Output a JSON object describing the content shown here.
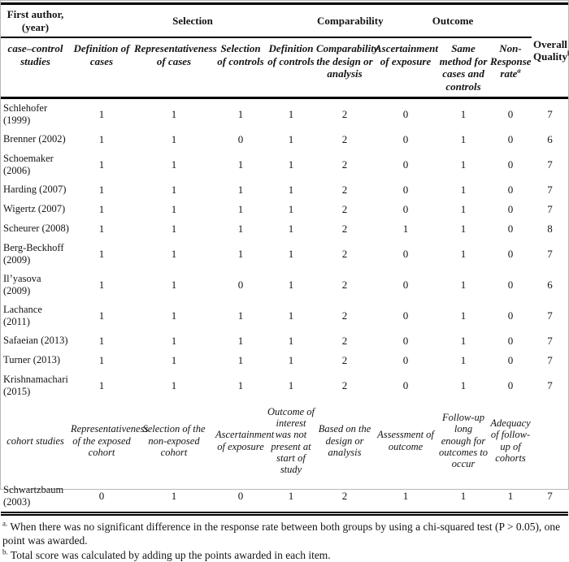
{
  "table": {
    "group_headers": {
      "first_author": "First author, (year)",
      "selection": "Selection",
      "comparability": "Comparability",
      "outcome": "Outcome",
      "overall_quality": "Overall Quality",
      "overall_quality_sup": "b"
    },
    "case_control": {
      "stub_label": "case–control studies",
      "columns": [
        "Definition of cases",
        "Representativeness of cases",
        "Selection of controls",
        "Definition of controls",
        "Comparability the design or analysis",
        "Ascertainment of exposure",
        "Same method for cases and controls",
        "Non-Response rate"
      ],
      "non_response_sup": "a",
      "rows": [
        {
          "author": "Schlehofer (1999)",
          "values": [
            "1",
            "1",
            "1",
            "1",
            "2",
            "0",
            "1",
            "0",
            "7"
          ]
        },
        {
          "author": "Brenner (2002)",
          "values": [
            "1",
            "1",
            "0",
            "1",
            "2",
            "0",
            "1",
            "0",
            "6"
          ]
        },
        {
          "author": "Schoemaker (2006)",
          "values": [
            "1",
            "1",
            "1",
            "1",
            "2",
            "0",
            "1",
            "0",
            "7"
          ]
        },
        {
          "author": "Harding (2007)",
          "values": [
            "1",
            "1",
            "1",
            "1",
            "2",
            "0",
            "1",
            "0",
            "7"
          ]
        },
        {
          "author": "Wigertz (2007)",
          "values": [
            "1",
            "1",
            "1",
            "1",
            "2",
            "0",
            "1",
            "0",
            "7"
          ]
        },
        {
          "author": "Scheurer (2008)",
          "values": [
            "1",
            "1",
            "1",
            "1",
            "2",
            "1",
            "1",
            "0",
            "8"
          ]
        },
        {
          "author": "Berg-Beckhoff (2009)",
          "values": [
            "1",
            "1",
            "1",
            "1",
            "2",
            "0",
            "1",
            "0",
            "7"
          ]
        },
        {
          "author": "Il’yasova (2009)",
          "values": [
            "1",
            "1",
            "0",
            "1",
            "2",
            "0",
            "1",
            "0",
            "6"
          ]
        },
        {
          "author": "Lachance (2011)",
          "values": [
            "1",
            "1",
            "1",
            "1",
            "2",
            "0",
            "1",
            "0",
            "7"
          ]
        },
        {
          "author": "Safaeian (2013)",
          "values": [
            "1",
            "1",
            "1",
            "1",
            "2",
            "0",
            "1",
            "0",
            "7"
          ]
        },
        {
          "author": "Turner (2013)",
          "values": [
            "1",
            "1",
            "1",
            "1",
            "2",
            "0",
            "1",
            "0",
            "7"
          ]
        },
        {
          "author": "Krishnamachari (2015)",
          "values": [
            "1",
            "1",
            "1",
            "1",
            "2",
            "0",
            "1",
            "0",
            "7"
          ]
        }
      ]
    },
    "cohort": {
      "stub_label": "cohort studies",
      "columns": [
        "Representativeness of the exposed cohort",
        "Selection of the non-exposed cohort",
        "Ascertainment of exposure",
        "Outcome of interest was not present at start of study",
        "Based on the design or analysis",
        "Assessment of outcome",
        "Follow-up long enough for outcomes to occur",
        "Adequacy of follow-up of cohorts"
      ],
      "rows": [
        {
          "author": "Schwartzbaum (2003)",
          "values": [
            "0",
            "1",
            "0",
            "1",
            "2",
            "1",
            "1",
            "1",
            "7"
          ]
        }
      ]
    },
    "footnotes": [
      {
        "marker": "a.",
        "text": "When there was no significant difference in the response rate between both groups by using a chi-squared test (P > 0.05), one point was awarded."
      },
      {
        "marker": "b.",
        "text": "Total score was calculated by adding up the points awarded in each item."
      }
    ]
  }
}
